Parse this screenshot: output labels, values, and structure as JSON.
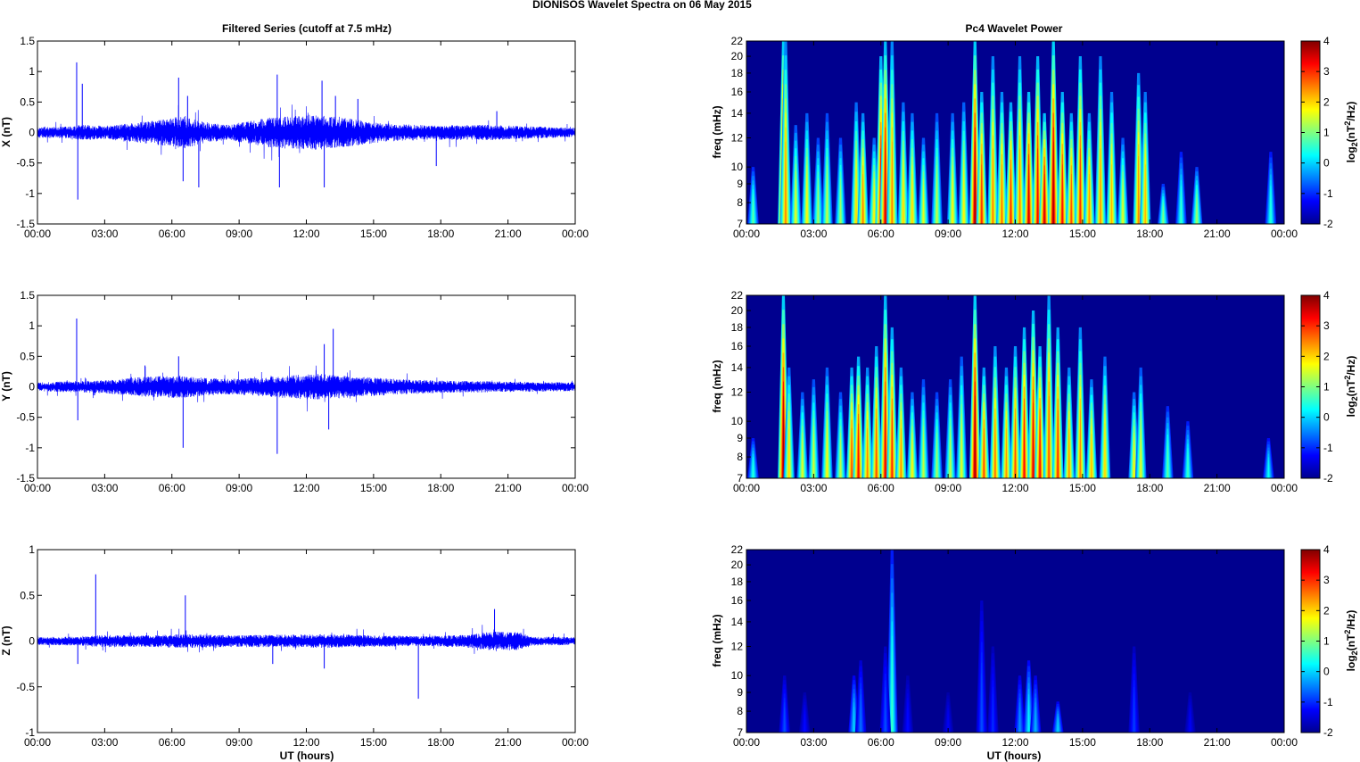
{
  "figure": {
    "title": "DIONISOS Wavelet Spectra on 06 May       2015",
    "left_title": "Filtered Series (cutoff at 7.5 mHz)",
    "right_title": "Pc4 Wavelet Power",
    "xlabel": "UT (hours)",
    "colorbar_label": "log2(nT2/Hz)",
    "colors": {
      "series_line": "#0000ff",
      "axes": "#000000"
    }
  },
  "chart_data": [
    {
      "type": "line",
      "panel": "x-series",
      "title": "Filtered Series (cutoff at 7.5 mHz)",
      "ylabel": "X (nT)",
      "xlabel": "",
      "x_ticks": [
        "00:00",
        "03:00",
        "06:00",
        "09:00",
        "12:00",
        "15:00",
        "18:00",
        "21:00",
        "00:00"
      ],
      "xlim_hours": [
        0,
        24
      ],
      "ylim": [
        -1.5,
        1.5
      ],
      "y_ticks": [
        "-1.5",
        "-1",
        "-0.5",
        "0",
        "0.5",
        "1",
        "1.5"
      ],
      "series": [
        {
          "color": "#0000ff",
          "base_amplitude": 0.07,
          "envelope": [
            [
              0,
              1
            ],
            [
              1.6,
              1.2
            ],
            [
              1.9,
              1.6
            ],
            [
              3,
              1.3
            ],
            [
              5,
              2.2
            ],
            [
              6.5,
              3.2
            ],
            [
              7.5,
              2
            ],
            [
              8.5,
              1.5
            ],
            [
              10.5,
              3.0
            ],
            [
              12.5,
              3.4
            ],
            [
              14.2,
              2.6
            ],
            [
              15.5,
              1.8
            ],
            [
              17.5,
              1.4
            ],
            [
              20,
              1.5
            ],
            [
              21.5,
              1.3
            ],
            [
              24,
              0.9
            ]
          ],
          "spikes": [
            [
              1.75,
              1.15
            ],
            [
              1.8,
              -1.1
            ],
            [
              2.0,
              0.8
            ],
            [
              6.3,
              0.9
            ],
            [
              6.5,
              -0.8
            ],
            [
              6.7,
              0.6
            ],
            [
              7.2,
              -0.9
            ],
            [
              10.7,
              0.95
            ],
            [
              10.8,
              -0.9
            ],
            [
              12.7,
              0.85
            ],
            [
              12.8,
              -0.9
            ],
            [
              13.3,
              0.6
            ],
            [
              14.3,
              0.55
            ],
            [
              17.8,
              -0.55
            ],
            [
              20.5,
              0.35
            ]
          ]
        }
      ]
    },
    {
      "type": "line",
      "panel": "y-series",
      "title": "",
      "ylabel": "Y (nT)",
      "xlabel": "",
      "x_ticks": [
        "00:00",
        "03:00",
        "06:00",
        "09:00",
        "12:00",
        "15:00",
        "18:00",
        "21:00",
        "00:00"
      ],
      "xlim_hours": [
        0,
        24
      ],
      "ylim": [
        -1.5,
        1.5
      ],
      "y_ticks": [
        "-1.5",
        "-1",
        "-0.5",
        "0",
        "0.5",
        "1",
        "1.5"
      ],
      "series": [
        {
          "color": "#0000ff",
          "base_amplitude": 0.06,
          "envelope": [
            [
              0,
              1
            ],
            [
              1.6,
              1.3
            ],
            [
              3,
              1.5
            ],
            [
              5,
              2.4
            ],
            [
              6.5,
              2.6
            ],
            [
              7.5,
              2.0
            ],
            [
              9,
              1.8
            ],
            [
              10.5,
              2.4
            ],
            [
              12.5,
              3.0
            ],
            [
              14,
              2.4
            ],
            [
              16,
              1.8
            ],
            [
              18,
              1.4
            ],
            [
              21,
              1.2
            ],
            [
              24,
              1
            ]
          ],
          "spikes": [
            [
              1.75,
              1.12
            ],
            [
              1.8,
              -0.55
            ],
            [
              6.5,
              -1.0
            ],
            [
              6.3,
              0.5
            ],
            [
              10.7,
              -1.1
            ],
            [
              12.8,
              0.7
            ],
            [
              13.2,
              0.95
            ],
            [
              13.0,
              -0.7
            ],
            [
              4.8,
              0.35
            ]
          ]
        }
      ]
    },
    {
      "type": "line",
      "panel": "z-series",
      "title": "",
      "ylabel": "Z (nT)",
      "xlabel": "UT (hours)",
      "x_ticks": [
        "00:00",
        "03:00",
        "06:00",
        "09:00",
        "12:00",
        "15:00",
        "18:00",
        "21:00",
        "00:00"
      ],
      "xlim_hours": [
        0,
        24
      ],
      "ylim": [
        -1,
        1
      ],
      "y_ticks": [
        "-1",
        "-0.5",
        "0",
        "0.5",
        "1"
      ],
      "series": [
        {
          "color": "#0000ff",
          "base_amplitude": 0.035,
          "envelope": [
            [
              0,
              1
            ],
            [
              2,
              1.2
            ],
            [
              3,
              1.6
            ],
            [
              5,
              1.5
            ],
            [
              6.5,
              1.8
            ],
            [
              9,
              1.5
            ],
            [
              11,
              1.7
            ],
            [
              13,
              1.8
            ],
            [
              15,
              1.5
            ],
            [
              17,
              1.3
            ],
            [
              19,
              1.6
            ],
            [
              20.5,
              2.6
            ],
            [
              21.5,
              2.4
            ],
            [
              22,
              1.2
            ],
            [
              24,
              1
            ]
          ],
          "spikes": [
            [
              2.6,
              0.73
            ],
            [
              6.6,
              0.5
            ],
            [
              17.0,
              -0.63
            ],
            [
              10.5,
              -0.25
            ],
            [
              20.4,
              0.35
            ],
            [
              12.8,
              -0.3
            ],
            [
              1.8,
              -0.25
            ]
          ]
        }
      ]
    },
    {
      "type": "heatmap",
      "panel": "x-wavelet",
      "title": "Pc4 Wavelet Power",
      "ylabel": "freq (mHz)",
      "xlabel": "",
      "x_ticks": [
        "00:00",
        "03:00",
        "06:00",
        "09:00",
        "12:00",
        "15:00",
        "18:00",
        "21:00",
        "00:00"
      ],
      "xlim_hours": [
        0,
        24
      ],
      "ylim": [
        7,
        22
      ],
      "y_scale": "log",
      "y_ticks": [
        "7",
        "8",
        "9",
        "10",
        "12",
        "14",
        "16",
        "18",
        "20",
        "22"
      ],
      "colorbar_ticks": [
        "-2",
        "-1",
        "0",
        "1",
        "2",
        "3",
        "4"
      ],
      "clim": [
        -2,
        4
      ],
      "background_level": -2,
      "events": [
        [
          0.3,
          10,
          0.8
        ],
        [
          1.65,
          22,
          3.8
        ],
        [
          1.75,
          22,
          2.5
        ],
        [
          2.2,
          13,
          1.6
        ],
        [
          2.7,
          14,
          1.8
        ],
        [
          3.2,
          12,
          1.2
        ],
        [
          3.6,
          14,
          1.4
        ],
        [
          4.2,
          12,
          1.2
        ],
        [
          4.9,
          15,
          2
        ],
        [
          5.2,
          14,
          2.5
        ],
        [
          5.7,
          12,
          1.8
        ],
        [
          6.0,
          20,
          3.3
        ],
        [
          6.2,
          22,
          3.5
        ],
        [
          6.5,
          22,
          2.5
        ],
        [
          7.0,
          15,
          2
        ],
        [
          7.4,
          14,
          2
        ],
        [
          7.9,
          12,
          1.6
        ],
        [
          8.5,
          14,
          1.4
        ],
        [
          9.2,
          14,
          1.8
        ],
        [
          9.7,
          15,
          1.8
        ],
        [
          10.2,
          22,
          3.8
        ],
        [
          10.5,
          16,
          3.0
        ],
        [
          11.0,
          20,
          2.5
        ],
        [
          11.4,
          16,
          2.6
        ],
        [
          11.8,
          15,
          3
        ],
        [
          12.2,
          20,
          2.5
        ],
        [
          12.6,
          16,
          3.5
        ],
        [
          13.0,
          20,
          3.3
        ],
        [
          13.3,
          14,
          3.5
        ],
        [
          13.7,
          22,
          3.8
        ],
        [
          14.1,
          16,
          3.2
        ],
        [
          14.5,
          14,
          2.8
        ],
        [
          14.9,
          20,
          3.0
        ],
        [
          15.3,
          14,
          2.4
        ],
        [
          15.8,
          20,
          2.4
        ],
        [
          16.3,
          16,
          2.2
        ],
        [
          16.8,
          12,
          1.6
        ],
        [
          17.5,
          18,
          2.5
        ],
        [
          17.8,
          16,
          2.2
        ],
        [
          18.6,
          9,
          1.0
        ],
        [
          19.4,
          11,
          0.6
        ],
        [
          20.1,
          10,
          1.2
        ],
        [
          23.4,
          11,
          0.5
        ]
      ]
    },
    {
      "type": "heatmap",
      "panel": "y-wavelet",
      "title": "",
      "ylabel": "freq (mHz)",
      "xlabel": "",
      "x_ticks": [
        "00:00",
        "03:00",
        "06:00",
        "09:00",
        "12:00",
        "15:00",
        "18:00",
        "21:00",
        "00:00"
      ],
      "xlim_hours": [
        0,
        24
      ],
      "ylim": [
        7,
        22
      ],
      "y_scale": "log",
      "y_ticks": [
        "7",
        "8",
        "9",
        "10",
        "12",
        "14",
        "16",
        "18",
        "20",
        "22"
      ],
      "colorbar_ticks": [
        "-2",
        "-1",
        "0",
        "1",
        "2",
        "3",
        "4"
      ],
      "clim": [
        -2,
        4
      ],
      "background_level": -2,
      "events": [
        [
          0.3,
          9,
          0.5
        ],
        [
          1.65,
          22,
          3.8
        ],
        [
          1.9,
          14,
          2.0
        ],
        [
          2.5,
          12,
          1.6
        ],
        [
          3.0,
          13,
          1.5
        ],
        [
          3.6,
          14,
          1.8
        ],
        [
          4.2,
          12,
          1.4
        ],
        [
          4.7,
          14,
          2.8
        ],
        [
          5.0,
          15,
          3.2
        ],
        [
          5.4,
          14,
          2.5
        ],
        [
          5.8,
          16,
          2.8
        ],
        [
          6.2,
          22,
          3.4
        ],
        [
          6.5,
          18,
          3.0
        ],
        [
          6.9,
          14,
          2.4
        ],
        [
          7.4,
          12,
          1.8
        ],
        [
          7.9,
          13,
          1.4
        ],
        [
          8.5,
          12,
          1.2
        ],
        [
          9.1,
          13,
          1.4
        ],
        [
          9.6,
          15,
          1.6
        ],
        [
          10.2,
          22,
          3.8
        ],
        [
          10.6,
          14,
          2.8
        ],
        [
          11.1,
          16,
          2.6
        ],
        [
          11.6,
          14,
          2.4
        ],
        [
          12.0,
          16,
          2.8
        ],
        [
          12.4,
          18,
          3.2
        ],
        [
          12.8,
          20,
          3.4
        ],
        [
          13.1,
          16,
          3.2
        ],
        [
          13.5,
          22,
          2.8
        ],
        [
          13.9,
          18,
          3.0
        ],
        [
          14.4,
          14,
          2.4
        ],
        [
          14.9,
          18,
          2.5
        ],
        [
          15.4,
          13,
          2.2
        ],
        [
          16.0,
          15,
          2.0
        ],
        [
          17.3,
          12,
          1.8
        ],
        [
          17.6,
          14,
          1.6
        ],
        [
          18.8,
          11,
          0.8
        ],
        [
          19.7,
          10,
          0.6
        ],
        [
          23.3,
          9,
          0.3
        ]
      ]
    },
    {
      "type": "heatmap",
      "panel": "z-wavelet",
      "title": "",
      "ylabel": "freq (mHz)",
      "xlabel": "UT (hours)",
      "x_ticks": [
        "00:00",
        "03:00",
        "06:00",
        "09:00",
        "12:00",
        "15:00",
        "18:00",
        "21:00",
        "00:00"
      ],
      "xlim_hours": [
        0,
        24
      ],
      "ylim": [
        7,
        22
      ],
      "y_scale": "log",
      "y_ticks": [
        "7",
        "8",
        "9",
        "10",
        "12",
        "14",
        "16",
        "18",
        "20",
        "22"
      ],
      "colorbar_ticks": [
        "-2",
        "-1",
        "0",
        "1",
        "2",
        "3",
        "4"
      ],
      "clim": [
        -2,
        4
      ],
      "background_level": -2,
      "events": [
        [
          1.7,
          10,
          -0.8
        ],
        [
          2.6,
          9,
          -1.2
        ],
        [
          4.8,
          10,
          0.0
        ],
        [
          5.1,
          11,
          -0.6
        ],
        [
          6.5,
          22,
          0.6
        ],
        [
          6.2,
          12,
          -0.8
        ],
        [
          7.2,
          10,
          -1.2
        ],
        [
          9.0,
          9,
          -1.3
        ],
        [
          10.5,
          16,
          -0.8
        ],
        [
          11.0,
          12,
          -1.0
        ],
        [
          12.2,
          10,
          -0.4
        ],
        [
          12.6,
          11,
          0.2
        ],
        [
          12.9,
          10,
          -0.2
        ],
        [
          13.9,
          8.5,
          0.0
        ],
        [
          17.3,
          12,
          -0.9
        ],
        [
          19.8,
          9,
          -1.3
        ]
      ]
    }
  ]
}
